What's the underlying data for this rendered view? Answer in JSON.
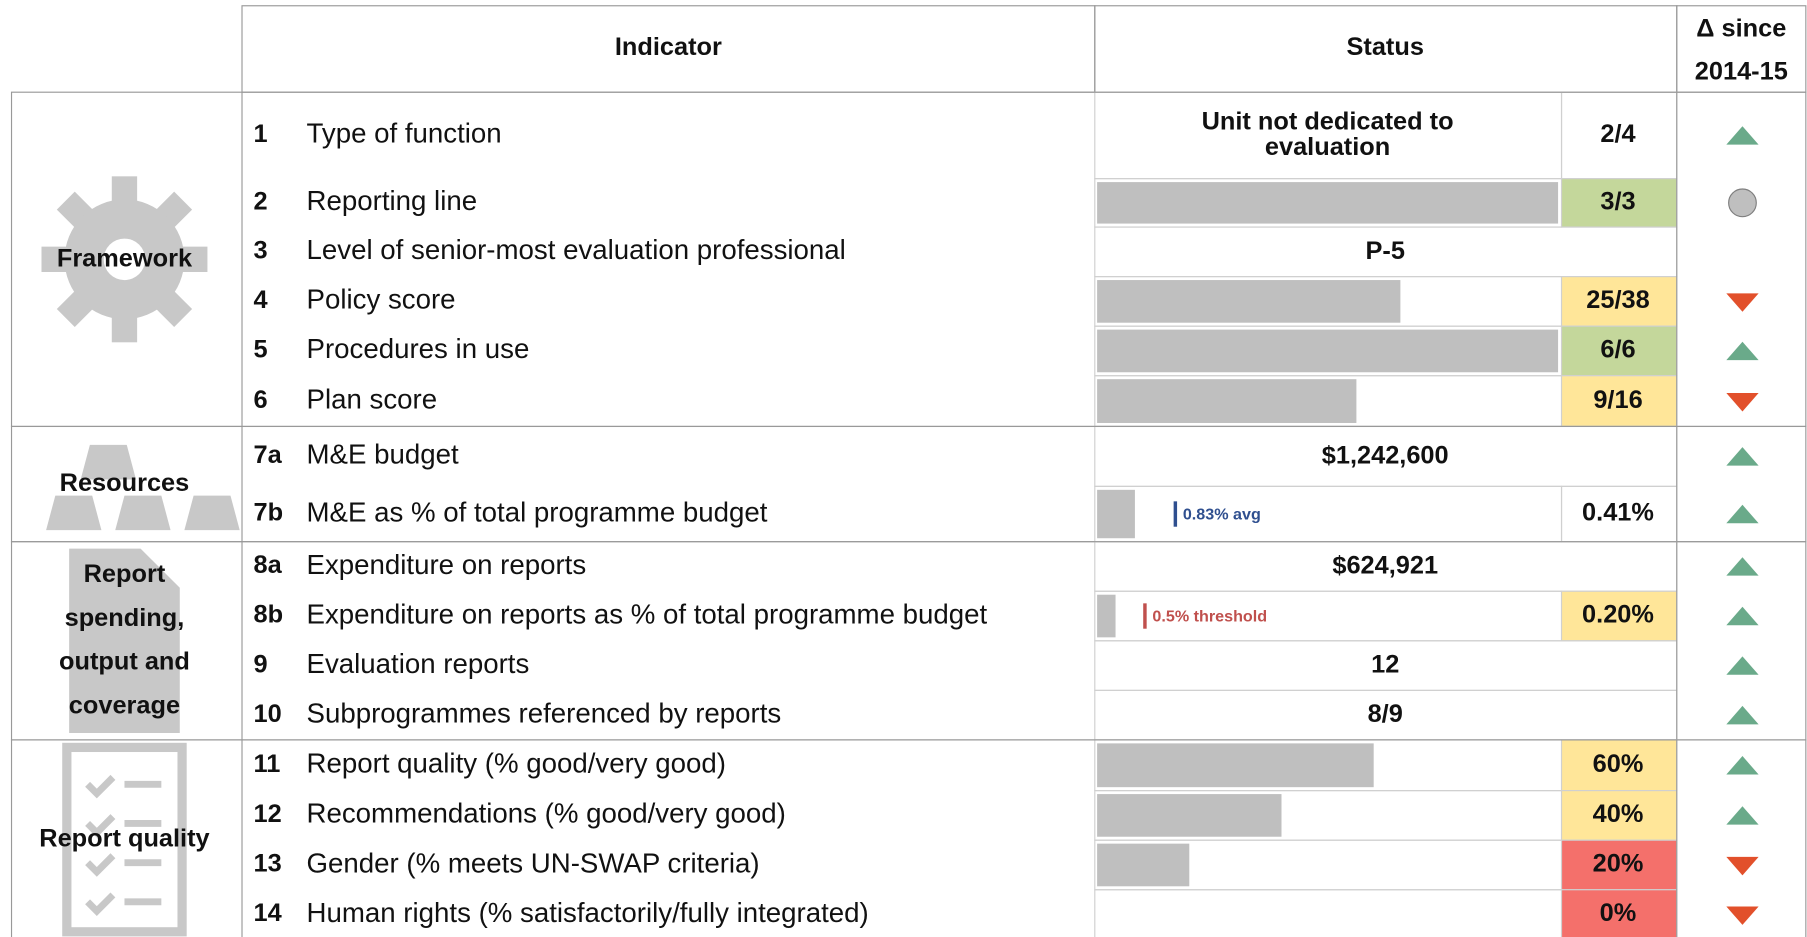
{
  "header": {
    "indicator": "Indicator",
    "status": "Status",
    "delta": [
      "Δ since",
      "2014-15"
    ]
  },
  "groups": [
    {
      "label": "Framework",
      "icon": "gear",
      "rows": [
        {
          "num": "1",
          "indicator": "Type of function",
          "status": "Unit not dedicated to evaluation",
          "score": "2/4",
          "trend": "up"
        },
        {
          "num": "2",
          "indicator": "Reporting line",
          "bar": true,
          "score": "3/3",
          "color": "#c4d79b",
          "trend": "same"
        },
        {
          "num": "3",
          "indicator": "Level of senior-most evaluation professional",
          "status": "P-5"
        },
        {
          "num": "4",
          "indicator": "Policy score",
          "bar": true,
          "score": "25/38",
          "color": "#ffe699",
          "trend": "down"
        },
        {
          "num": "5",
          "indicator": "Procedures in use",
          "bar": true,
          "score": "6/6",
          "color": "#c4d79b",
          "trend": "up"
        },
        {
          "num": "6",
          "indicator": "Plan score",
          "bar": true,
          "score": "9/16",
          "color": "#ffe699",
          "trend": "down"
        }
      ]
    },
    {
      "label": "Resources",
      "icon": "gold",
      "rows": [
        {
          "num": "7a",
          "indicator": "M&E budget",
          "status": "$1,242,600",
          "trend": "up"
        },
        {
          "num": "7b",
          "indicator": "M&E as % of total programme budget",
          "bar": true,
          "marker": "0.83% avg",
          "marker_color": "#2f4f8f",
          "score": "0.41%",
          "trend": "up"
        }
      ]
    },
    {
      "label": "Report spending, output and coverage",
      "icon": "doc",
      "rows": [
        {
          "num": "8a",
          "indicator": "Expenditure on reports",
          "status": "$624,921",
          "trend": "up"
        },
        {
          "num": "8b",
          "indicator": "Expenditure on reports as % of total programme budget",
          "bar": true,
          "marker": "0.5% threshold",
          "marker_color": "#c0504d",
          "score": "0.20%",
          "color": "#ffe699",
          "trend": "up"
        },
        {
          "num": "9",
          "indicator": "Evaluation reports",
          "status": "12",
          "trend": "up"
        },
        {
          "num": "10",
          "indicator": "Subprogrammes referenced by reports",
          "status": "8/9",
          "trend": "up"
        }
      ]
    },
    {
      "label": "Report quality",
      "icon": "check",
      "rows": [
        {
          "num": "11",
          "indicator": "Report quality (% good/very good)",
          "bar": true,
          "score": "60%",
          "color": "#ffe699",
          "trend": "up"
        },
        {
          "num": "12",
          "indicator": "Recommendations (% good/very good)",
          "bar": true,
          "score": "40%",
          "color": "#ffe699",
          "trend": "up"
        },
        {
          "num": "13",
          "indicator": "Gender (% meets UN-SWAP criteria)",
          "bar": true,
          "score": "20%",
          "color": "#f4706b",
          "trend": "down"
        },
        {
          "num": "14",
          "indicator": "Human rights (% satisfactorily/fully integrated)",
          "bar": true,
          "score": "0%",
          "color": "#f4706b",
          "trend": "down"
        }
      ]
    }
  ]
}
